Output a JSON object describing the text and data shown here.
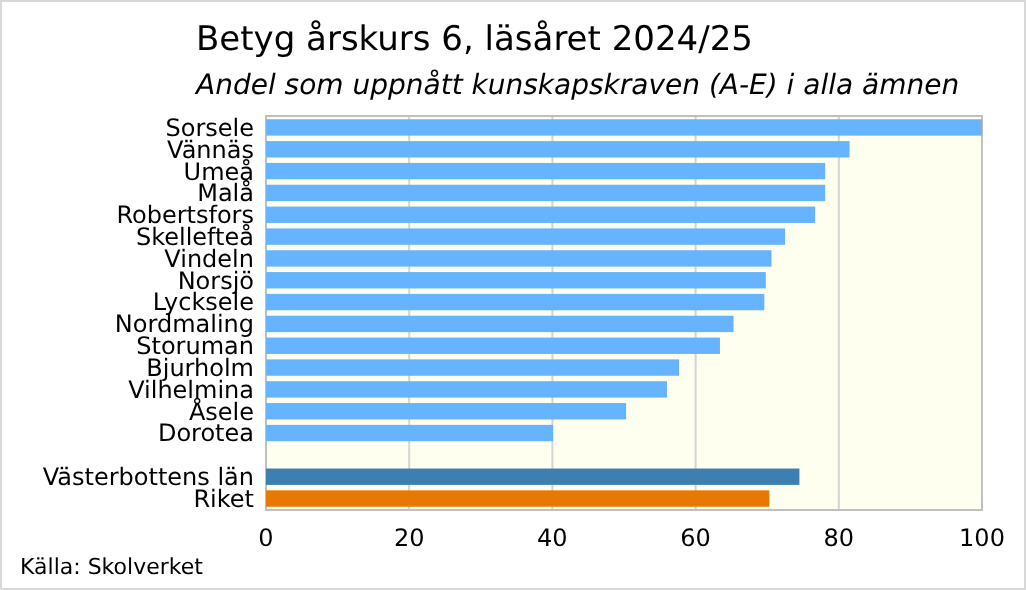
{
  "chart_data": {
    "type": "bar",
    "orientation": "horizontal",
    "title": "Betyg årskurs 6, läsåret 2024/25",
    "subtitle": "Andel som uppnått kunskapskraven (A-E) i alla ämnen",
    "categories": [
      "Sorsele",
      "Vännäs",
      "Umeå",
      "Malå",
      "Robertsfors",
      "Skellefteå",
      "Vindeln",
      "Norsjö",
      "Lycksele",
      "Nordmaling",
      "Storuman",
      "Bjurholm",
      "Vilhelmina",
      "Åsele",
      "Dorotea",
      null,
      "Västerbottens län",
      "Riket"
    ],
    "values": [
      100,
      81.5,
      78.1,
      78.1,
      76.7,
      72.5,
      70.6,
      69.8,
      69.6,
      65.3,
      63.4,
      57.7,
      56.0,
      50.3,
      40.1,
      null,
      74.5,
      70.3
    ],
    "colors": [
      "#66b3ff",
      "#66b3ff",
      "#66b3ff",
      "#66b3ff",
      "#66b3ff",
      "#66b3ff",
      "#66b3ff",
      "#66b3ff",
      "#66b3ff",
      "#66b3ff",
      "#66b3ff",
      "#66b3ff",
      "#66b3ff",
      "#66b3ff",
      "#66b3ff",
      null,
      "#3d7fb0",
      "#e87800"
    ],
    "xlim": [
      0,
      100
    ],
    "xticks": [
      0,
      20,
      40,
      60,
      80,
      100
    ],
    "grid": "x",
    "annotations": [
      "Källa: Skolverket"
    ]
  }
}
